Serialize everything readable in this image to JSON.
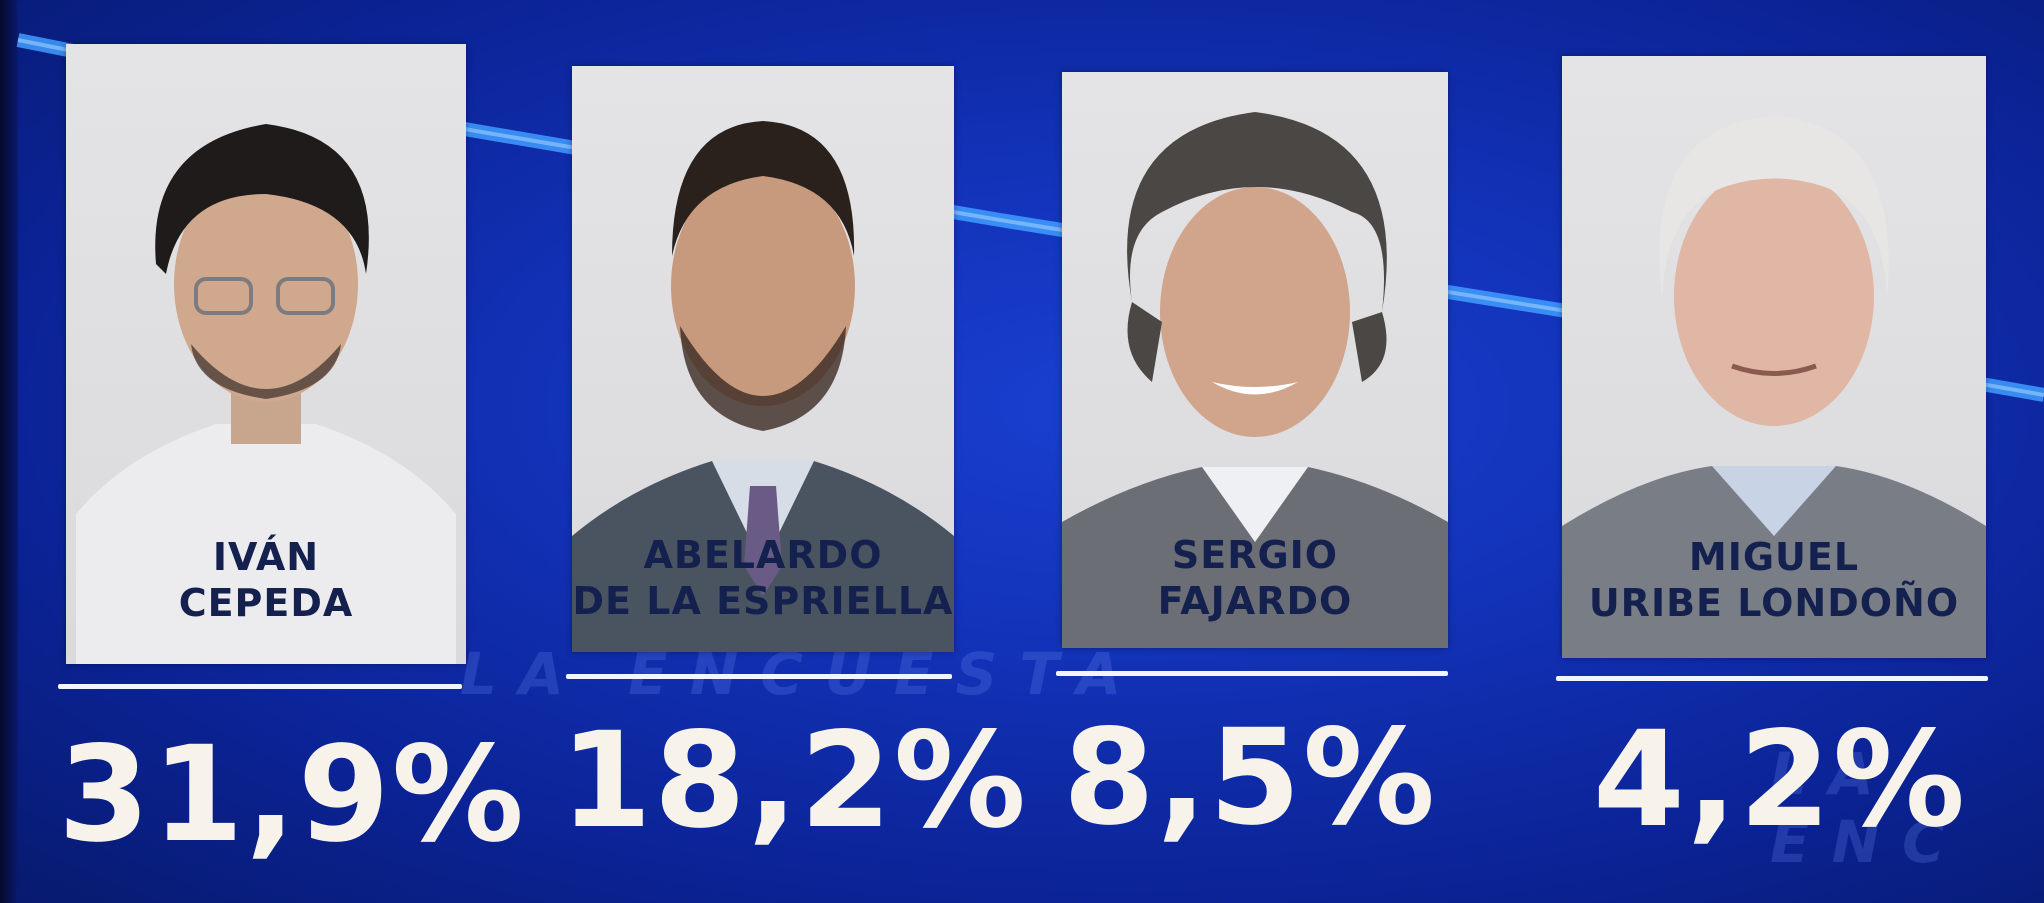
{
  "candidates": [
    {
      "name_line1": "IVÁN",
      "name_line2": "CEPEDA",
      "percent": "31,9%"
    },
    {
      "name_line1": "ABELARDO",
      "name_line2": "DE LA ESPRIELLA",
      "percent": "18,2%"
    },
    {
      "name_line1": "SERGIO",
      "name_line2": "FAJARDO",
      "percent": "8,5%"
    },
    {
      "name_line1": "MIGUEL",
      "name_line2": "URIBE LONDOÑO",
      "percent": "4,2%"
    }
  ],
  "background": {
    "watermark_1": "LA ENCUESTA",
    "watermark_2": "LA ENC"
  },
  "colors": {
    "background": "#1232b8",
    "card": "#dedee0",
    "name_text": "#14214f",
    "percent_text": "#f7f3ea",
    "trend_line": "#3fa0ff"
  }
}
